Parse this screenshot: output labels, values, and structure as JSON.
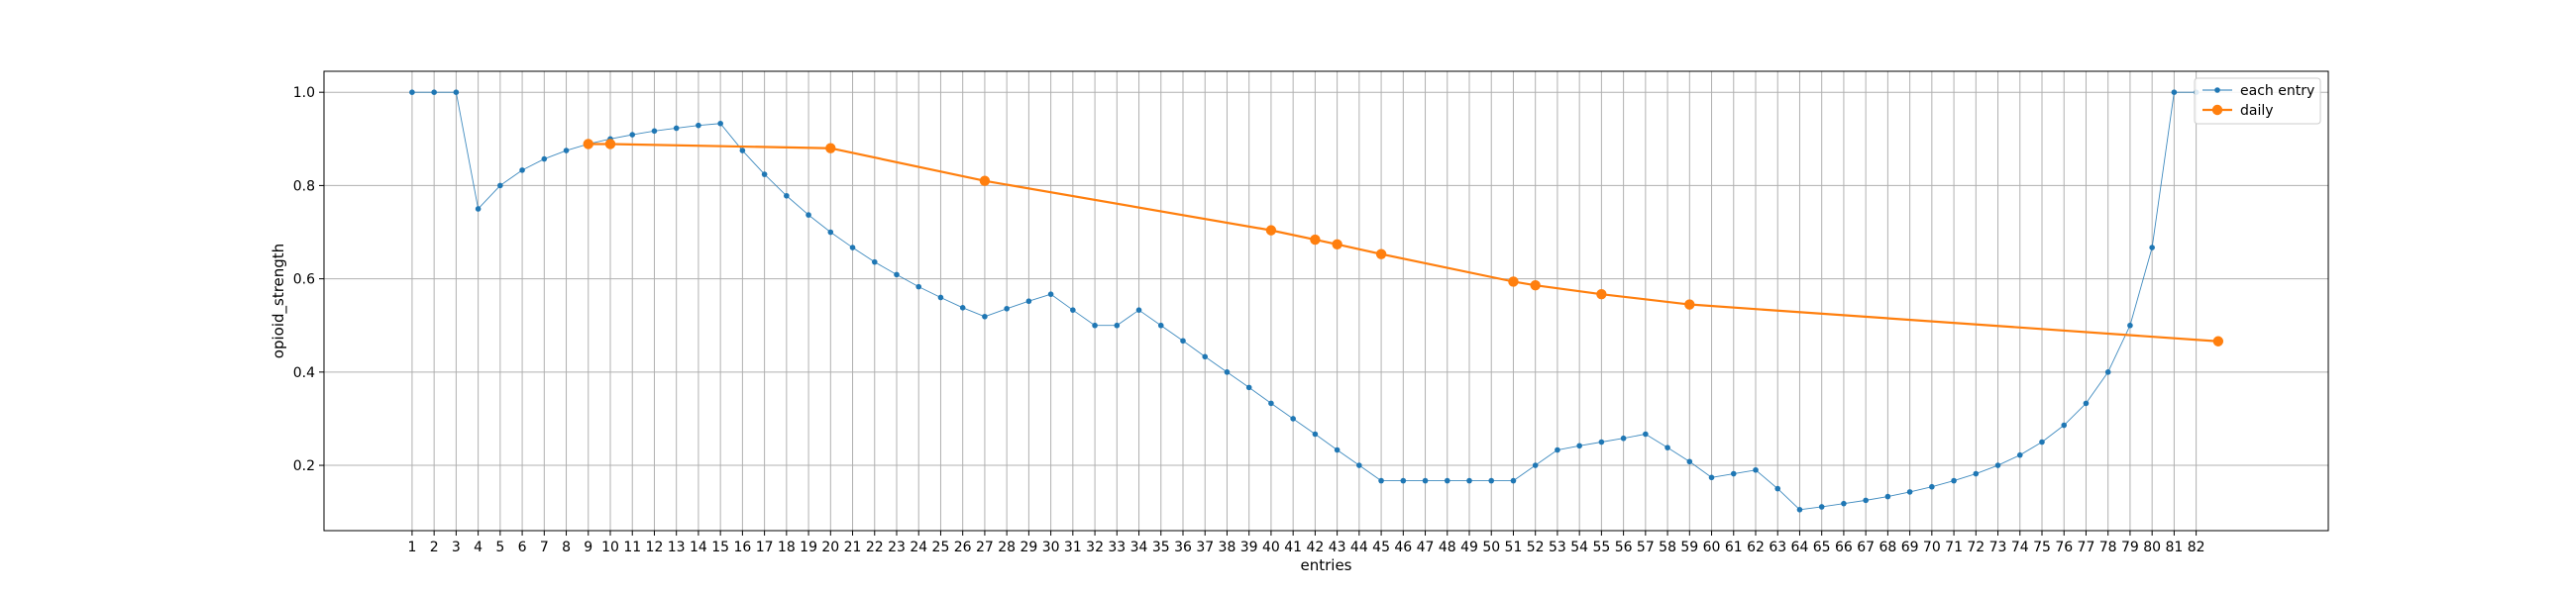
{
  "chart_data": {
    "type": "line",
    "xlabel": "entries",
    "ylabel": "opioid_strength",
    "x_ticks": [
      1,
      2,
      3,
      4,
      5,
      6,
      7,
      8,
      9,
      10,
      11,
      12,
      13,
      14,
      15,
      16,
      17,
      18,
      19,
      20,
      21,
      22,
      23,
      24,
      25,
      26,
      27,
      28,
      29,
      30,
      31,
      32,
      33,
      34,
      35,
      36,
      37,
      38,
      39,
      40,
      41,
      42,
      43,
      44,
      45,
      46,
      47,
      48,
      49,
      50,
      51,
      52,
      53,
      54,
      55,
      56,
      57,
      58,
      59,
      60,
      61,
      62,
      63,
      64,
      65,
      66,
      67,
      68,
      69,
      70,
      71,
      72,
      73,
      74,
      75,
      76,
      77,
      78,
      79,
      80,
      81,
      82
    ],
    "xlim": [
      -3,
      88
    ],
    "ylim": [
      0.06,
      1.045
    ],
    "y_ticks": [
      0.2,
      0.4,
      0.6,
      0.8,
      1.0
    ],
    "y_tick_labels": [
      "0.2",
      "0.4",
      "0.6",
      "0.8",
      "1.0"
    ],
    "grid": true,
    "legend_position": "top-right",
    "series": [
      {
        "name": "each entry",
        "color": "#1f77b4",
        "marker": "small-dot",
        "x": [
          1,
          2,
          3,
          4,
          5,
          6,
          7,
          8,
          9,
          10,
          11,
          12,
          13,
          14,
          15,
          16,
          17,
          18,
          19,
          20,
          21,
          22,
          23,
          24,
          25,
          26,
          27,
          28,
          29,
          30,
          31,
          32,
          33,
          34,
          35,
          36,
          37,
          38,
          39,
          40,
          41,
          42,
          43,
          44,
          45,
          46,
          47,
          48,
          49,
          50,
          51,
          52,
          53,
          54,
          55,
          56,
          57,
          58,
          59,
          60,
          61,
          62,
          63,
          64,
          65,
          66,
          67,
          68,
          69,
          70,
          71,
          72,
          73,
          74,
          75,
          76,
          77,
          78,
          79,
          80,
          81,
          82
        ],
        "y": [
          1.0,
          1.0,
          1.0,
          0.75,
          0.8,
          0.833,
          0.857,
          0.875,
          0.889,
          0.9,
          0.909,
          0.917,
          0.923,
          0.929,
          0.933,
          0.875,
          0.824,
          0.778,
          0.737,
          0.7,
          0.667,
          0.636,
          0.609,
          0.583,
          0.56,
          0.538,
          0.519,
          0.536,
          0.552,
          0.567,
          0.533,
          0.5,
          0.5,
          0.533,
          0.5,
          0.467,
          0.433,
          0.4,
          0.367,
          0.333,
          0.3,
          0.267,
          0.233,
          0.2,
          0.167,
          0.167,
          0.167,
          0.167,
          0.167,
          0.167,
          0.167,
          0.2,
          0.233,
          0.242,
          0.25,
          0.258,
          0.267,
          0.238,
          0.208,
          0.174,
          0.182,
          0.19,
          0.15,
          0.105,
          0.111,
          0.118,
          0.125,
          0.133,
          0.143,
          0.154,
          0.167,
          0.182,
          0.2,
          0.222,
          0.25,
          0.286,
          0.333,
          0.4,
          0.5,
          0.667,
          1.0,
          1.0
        ]
      },
      {
        "name": "daily",
        "color": "#ff7f0e",
        "marker": "large-dot",
        "x": [
          9,
          10,
          20,
          27,
          40,
          42,
          43,
          45,
          51,
          52,
          55,
          59,
          83
        ],
        "y": [
          0.889,
          0.889,
          0.88,
          0.81,
          0.704,
          0.684,
          0.674,
          0.653,
          0.594,
          0.586,
          0.567,
          0.545,
          0.466
        ]
      }
    ]
  }
}
